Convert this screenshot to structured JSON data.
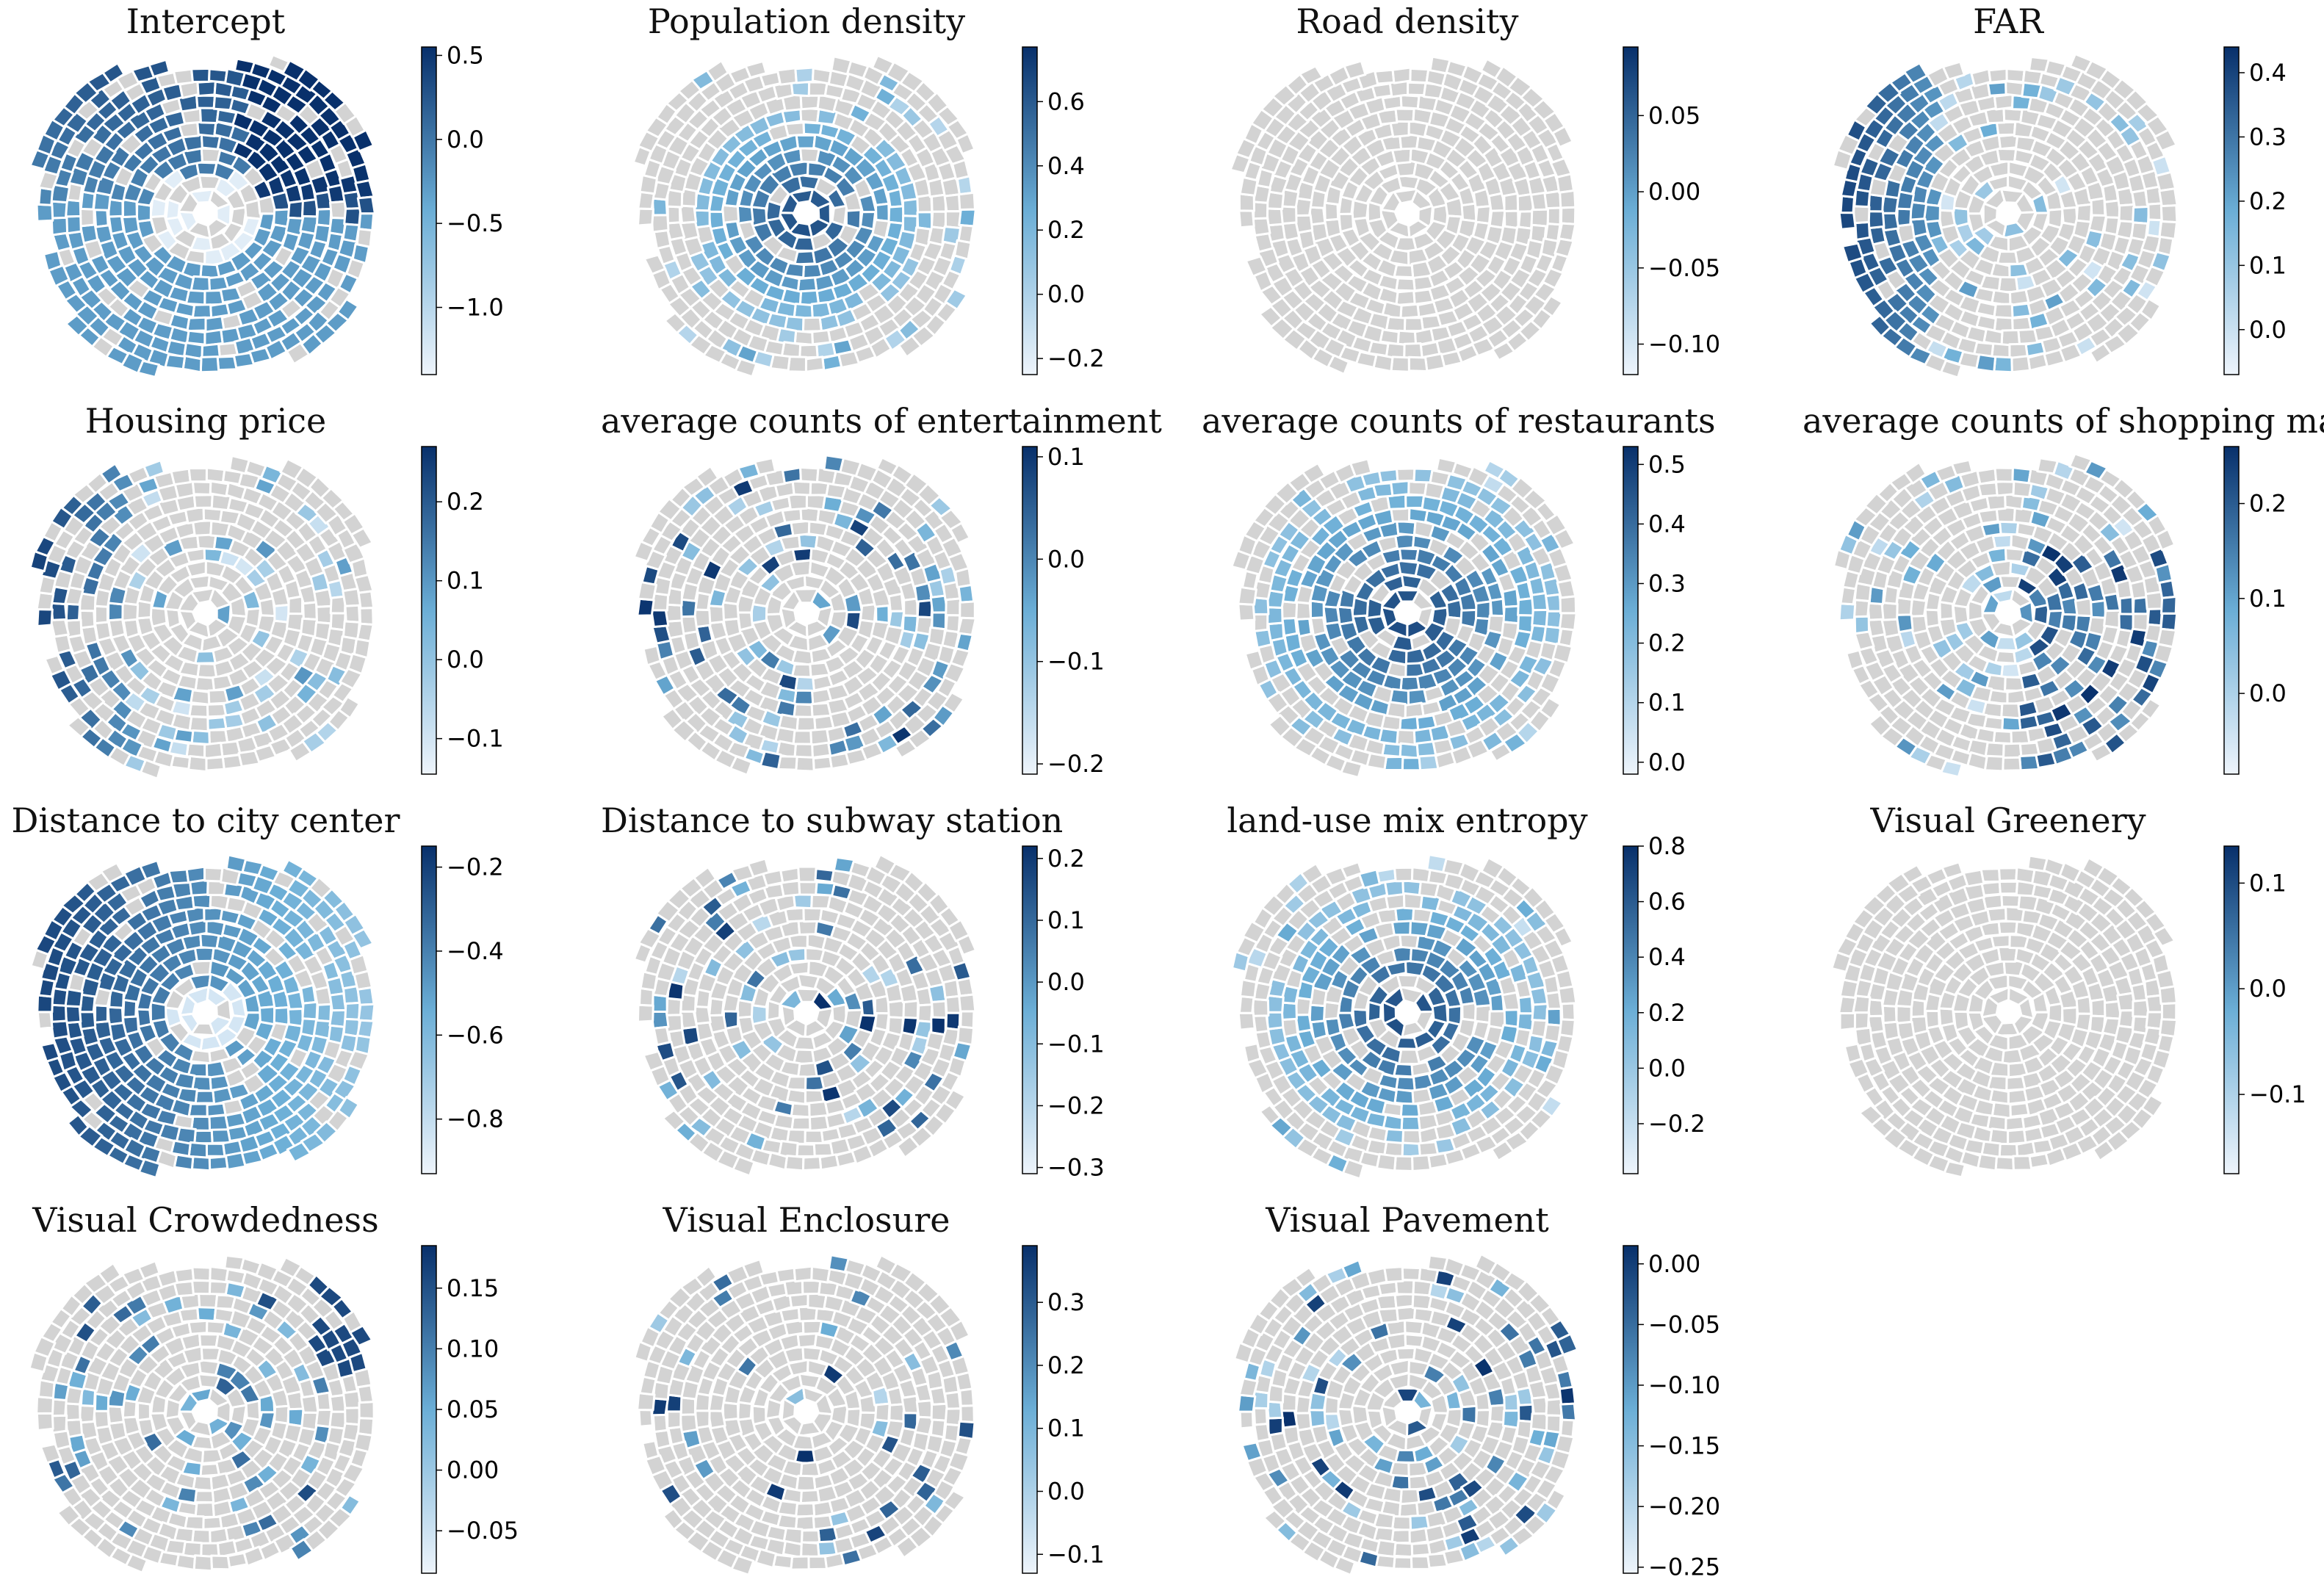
{
  "colormap": {
    "low": "#eef4fb",
    "mid": "#6baed6",
    "high": "#08306b",
    "null": "#d3d3d3",
    "border": "#ffffff"
  },
  "chart_data": [
    {
      "type": "choropleth",
      "title": "Intercept",
      "cbar": {
        "min": -1.4,
        "max": 0.55,
        "ticks": [
          0.5,
          0.0,
          -0.5,
          -1.0
        ],
        "labels": [
          "0.5",
          "0.0",
          "−0.5",
          "−1.0"
        ]
      }
    },
    {
      "type": "choropleth",
      "title": "Population density",
      "cbar": {
        "min": -0.25,
        "max": 0.77,
        "ticks": [
          0.6,
          0.4,
          0.2,
          0.0,
          -0.2
        ],
        "labels": [
          "0.6",
          "0.4",
          "0.2",
          "0.0",
          "−0.2"
        ]
      }
    },
    {
      "type": "choropleth",
      "title": "Road density",
      "cbar": {
        "min": -0.12,
        "max": 0.095,
        "ticks": [
          0.05,
          0.0,
          -0.05,
          -0.1
        ],
        "labels": [
          "0.05",
          "0.00",
          "−0.05",
          "−0.10"
        ]
      }
    },
    {
      "type": "choropleth",
      "title": "FAR",
      "cbar": {
        "min": -0.07,
        "max": 0.44,
        "ticks": [
          0.4,
          0.3,
          0.2,
          0.1,
          0.0
        ],
        "labels": [
          "0.4",
          "0.3",
          "0.2",
          "0.1",
          "0.0"
        ]
      }
    },
    {
      "type": "choropleth",
      "title": "Housing price",
      "cbar": {
        "min": -0.145,
        "max": 0.27,
        "ticks": [
          0.2,
          0.1,
          0.0,
          -0.1
        ],
        "labels": [
          "0.2",
          "0.1",
          "0.0",
          "−0.1"
        ]
      }
    },
    {
      "type": "choropleth",
      "title": "average counts of entertainment",
      "cbar": {
        "min": -0.21,
        "max": 0.11,
        "ticks": [
          0.1,
          0.0,
          -0.1,
          -0.2
        ],
        "labels": [
          "0.1",
          "0.0",
          "−0.1",
          "−0.2"
        ]
      }
    },
    {
      "type": "choropleth",
      "title": "average counts of restaurants",
      "cbar": {
        "min": -0.02,
        "max": 0.53,
        "ticks": [
          0.5,
          0.4,
          0.3,
          0.2,
          0.1,
          0.0
        ],
        "labels": [
          "0.5",
          "0.4",
          "0.3",
          "0.2",
          "0.1",
          "0.0"
        ]
      }
    },
    {
      "type": "choropleth",
      "title": "average counts of shopping malls",
      "cbar": {
        "min": -0.085,
        "max": 0.26,
        "ticks": [
          0.2,
          0.1,
          0.0
        ],
        "labels": [
          "0.2",
          "0.1",
          "0.0"
        ]
      }
    },
    {
      "type": "choropleth",
      "title": "Distance to city center",
      "cbar": {
        "min": -0.93,
        "max": -0.15,
        "ticks": [
          -0.2,
          -0.4,
          -0.6,
          -0.8
        ],
        "labels": [
          "−0.2",
          "−0.4",
          "−0.6",
          "−0.8"
        ]
      }
    },
    {
      "type": "choropleth",
      "title": "Distance to subway station",
      "cbar": {
        "min": -0.31,
        "max": 0.22,
        "ticks": [
          0.2,
          0.1,
          0.0,
          -0.1,
          -0.2,
          -0.3
        ],
        "labels": [
          "0.2",
          "0.1",
          "0.0",
          "−0.1",
          "−0.2",
          "−0.3"
        ]
      }
    },
    {
      "type": "choropleth",
      "title": "land-use mix entropy",
      "cbar": {
        "min": -0.38,
        "max": 0.8,
        "ticks": [
          0.8,
          0.6,
          0.4,
          0.2,
          0.0,
          -0.2
        ],
        "labels": [
          "0.8",
          "0.6",
          "0.4",
          "0.2",
          "0.0",
          "−0.2"
        ]
      }
    },
    {
      "type": "choropleth",
      "title": "Visual Greenery",
      "cbar": {
        "min": -0.175,
        "max": 0.135,
        "ticks": [
          0.1,
          0.0,
          -0.1
        ],
        "labels": [
          "0.1",
          "0.0",
          "−0.1"
        ]
      }
    },
    {
      "type": "choropleth",
      "title": "Visual Crowdedness",
      "cbar": {
        "min": -0.085,
        "max": 0.185,
        "ticks": [
          0.15,
          0.1,
          0.05,
          0.0,
          -0.05
        ],
        "labels": [
          "0.15",
          "0.10",
          "0.05",
          "0.00",
          "−0.05"
        ]
      }
    },
    {
      "type": "choropleth",
      "title": "Visual  Enclosure",
      "cbar": {
        "min": -0.13,
        "max": 0.39,
        "ticks": [
          0.3,
          0.2,
          0.1,
          0.0,
          -0.1
        ],
        "labels": [
          "0.3",
          "0.2",
          "0.1",
          "0.0",
          "−0.1"
        ]
      }
    },
    {
      "type": "choropleth",
      "title": "Visual Pavement",
      "cbar": {
        "min": -0.255,
        "max": 0.015,
        "ticks": [
          0.0,
          -0.05,
          -0.1,
          -0.15,
          -0.2,
          -0.25
        ],
        "labels": [
          "0.00",
          "−0.05",
          "−0.10",
          "−0.15",
          "−0.20",
          "−0.25"
        ]
      }
    }
  ]
}
